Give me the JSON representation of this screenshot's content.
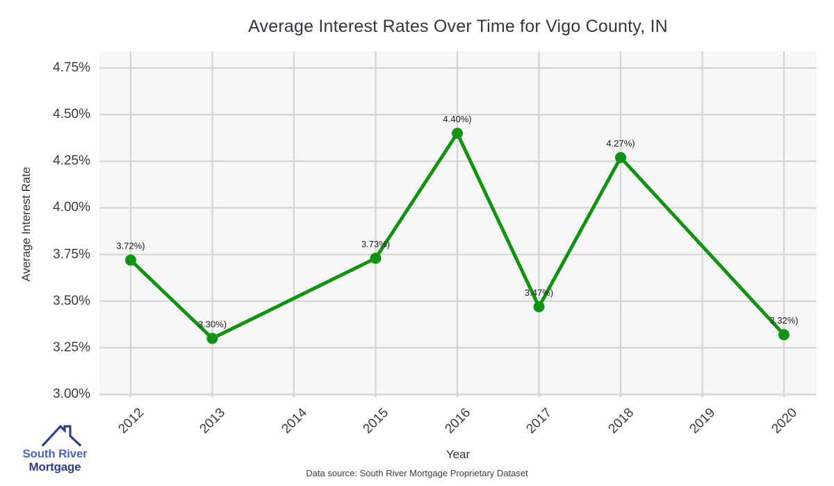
{
  "title": "Average Interest Rates Over Time for Vigo County, IN",
  "axes": {
    "x_label": "Year",
    "y_label": "Average Interest Rate"
  },
  "chart_data": {
    "type": "line",
    "title": "Average Interest Rates Over Time for Vigo County, IN",
    "xlabel": "Year",
    "ylabel": "Average Interest Rate",
    "x": [
      2012,
      2013,
      2015,
      2016,
      2017,
      2018,
      2020
    ],
    "values": [
      3.72,
      3.3,
      3.73,
      4.4,
      3.47,
      4.27,
      3.32
    ],
    "point_labels": [
      "3.72%)",
      "3.30%)",
      "3.73%)",
      "4.40%)",
      "3.47%)",
      "4.27%)",
      "3.32%)"
    ],
    "x_ticks": [
      "2012",
      "2013",
      "2014",
      "2015",
      "2016",
      "2017",
      "2018",
      "2019",
      "2020"
    ],
    "y_ticks": [
      "3.00%",
      "3.25%",
      "3.50%",
      "3.75%",
      "4.00%",
      "4.25%",
      "4.50%",
      "4.75%"
    ],
    "xlim": [
      2012,
      2020
    ],
    "ylim": [
      3.0,
      4.75
    ],
    "grid": true,
    "legend": "none",
    "line_color": "#119311",
    "marker_color": "#119311",
    "plot_bg": "#f7f7f7",
    "grid_color": "#d4d4d4",
    "label_color": "#1a1a1a"
  },
  "logo": {
    "line1": "South River",
    "line2": "Mortgage",
    "color_primary": "#4a69b4",
    "color_secondary": "#2d3f8a"
  },
  "footer": {
    "source_note": "Data source: South River Mortgage Proprietary Dataset"
  }
}
